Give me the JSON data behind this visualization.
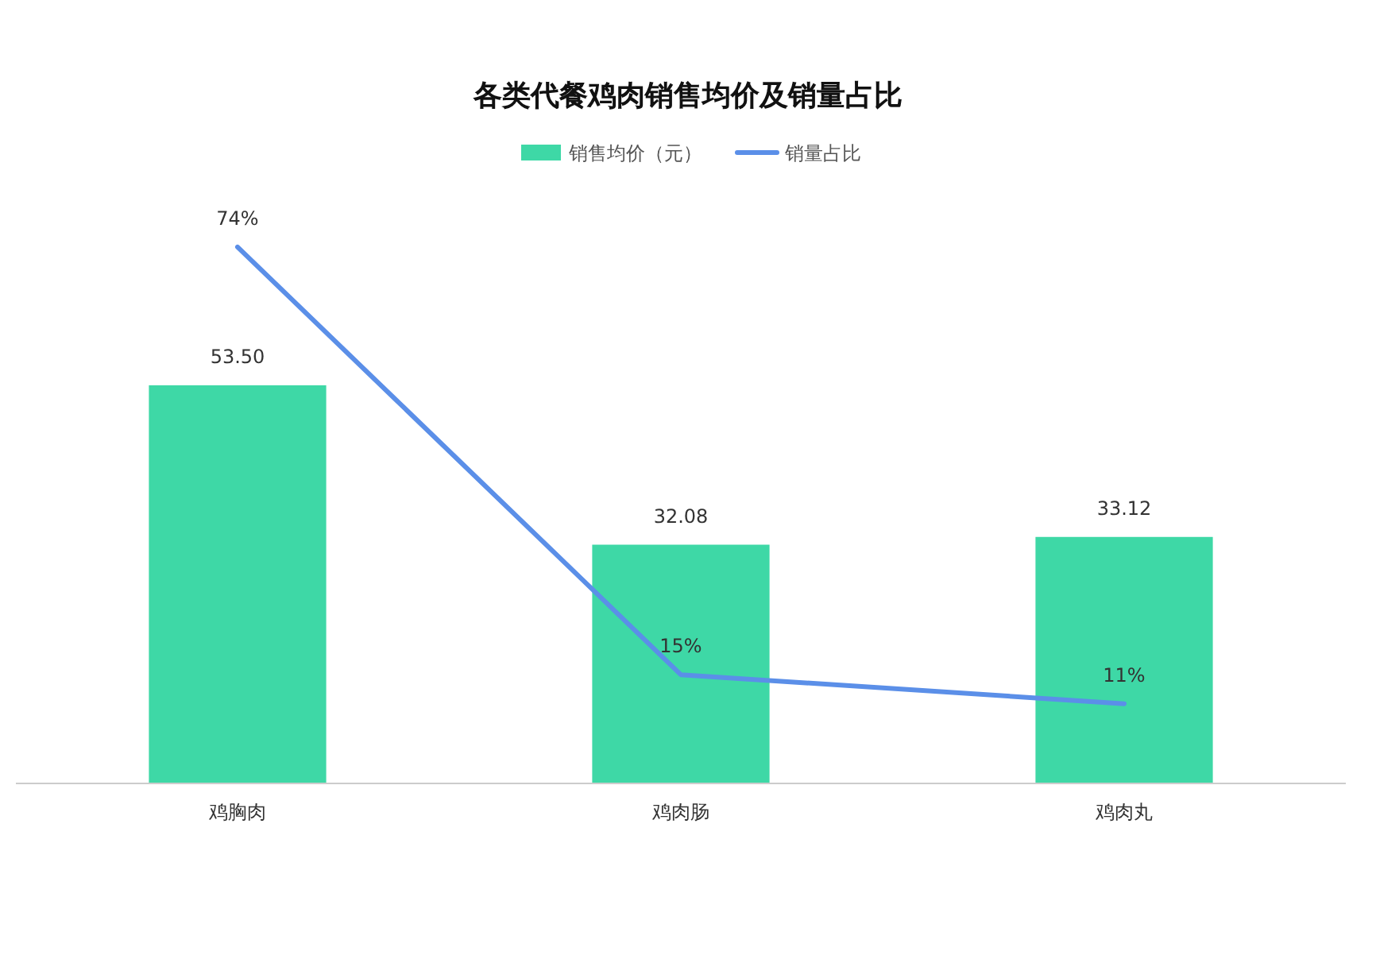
{
  "chart_data": {
    "type": "bar",
    "title": "各类代餐鸡肉销售均价及销量占比",
    "categories": [
      "鸡胸肉",
      "鸡肉肠",
      "鸡肉丸"
    ],
    "series": [
      {
        "name": "销售均价（元）",
        "color": "#3ed8a6",
        "values": [
          53.5,
          32.08,
          33.12
        ],
        "value_labels": [
          "53.50",
          "32.08",
          "33.12"
        ]
      },
      {
        "name": "销量占比",
        "type": "line",
        "axis": "y2",
        "color": "#5b8fe8",
        "values": [
          74,
          15,
          11
        ],
        "value_labels": [
          "74%",
          "15%",
          "11%"
        ]
      }
    ],
    "legend": "top",
    "marker": "none"
  }
}
